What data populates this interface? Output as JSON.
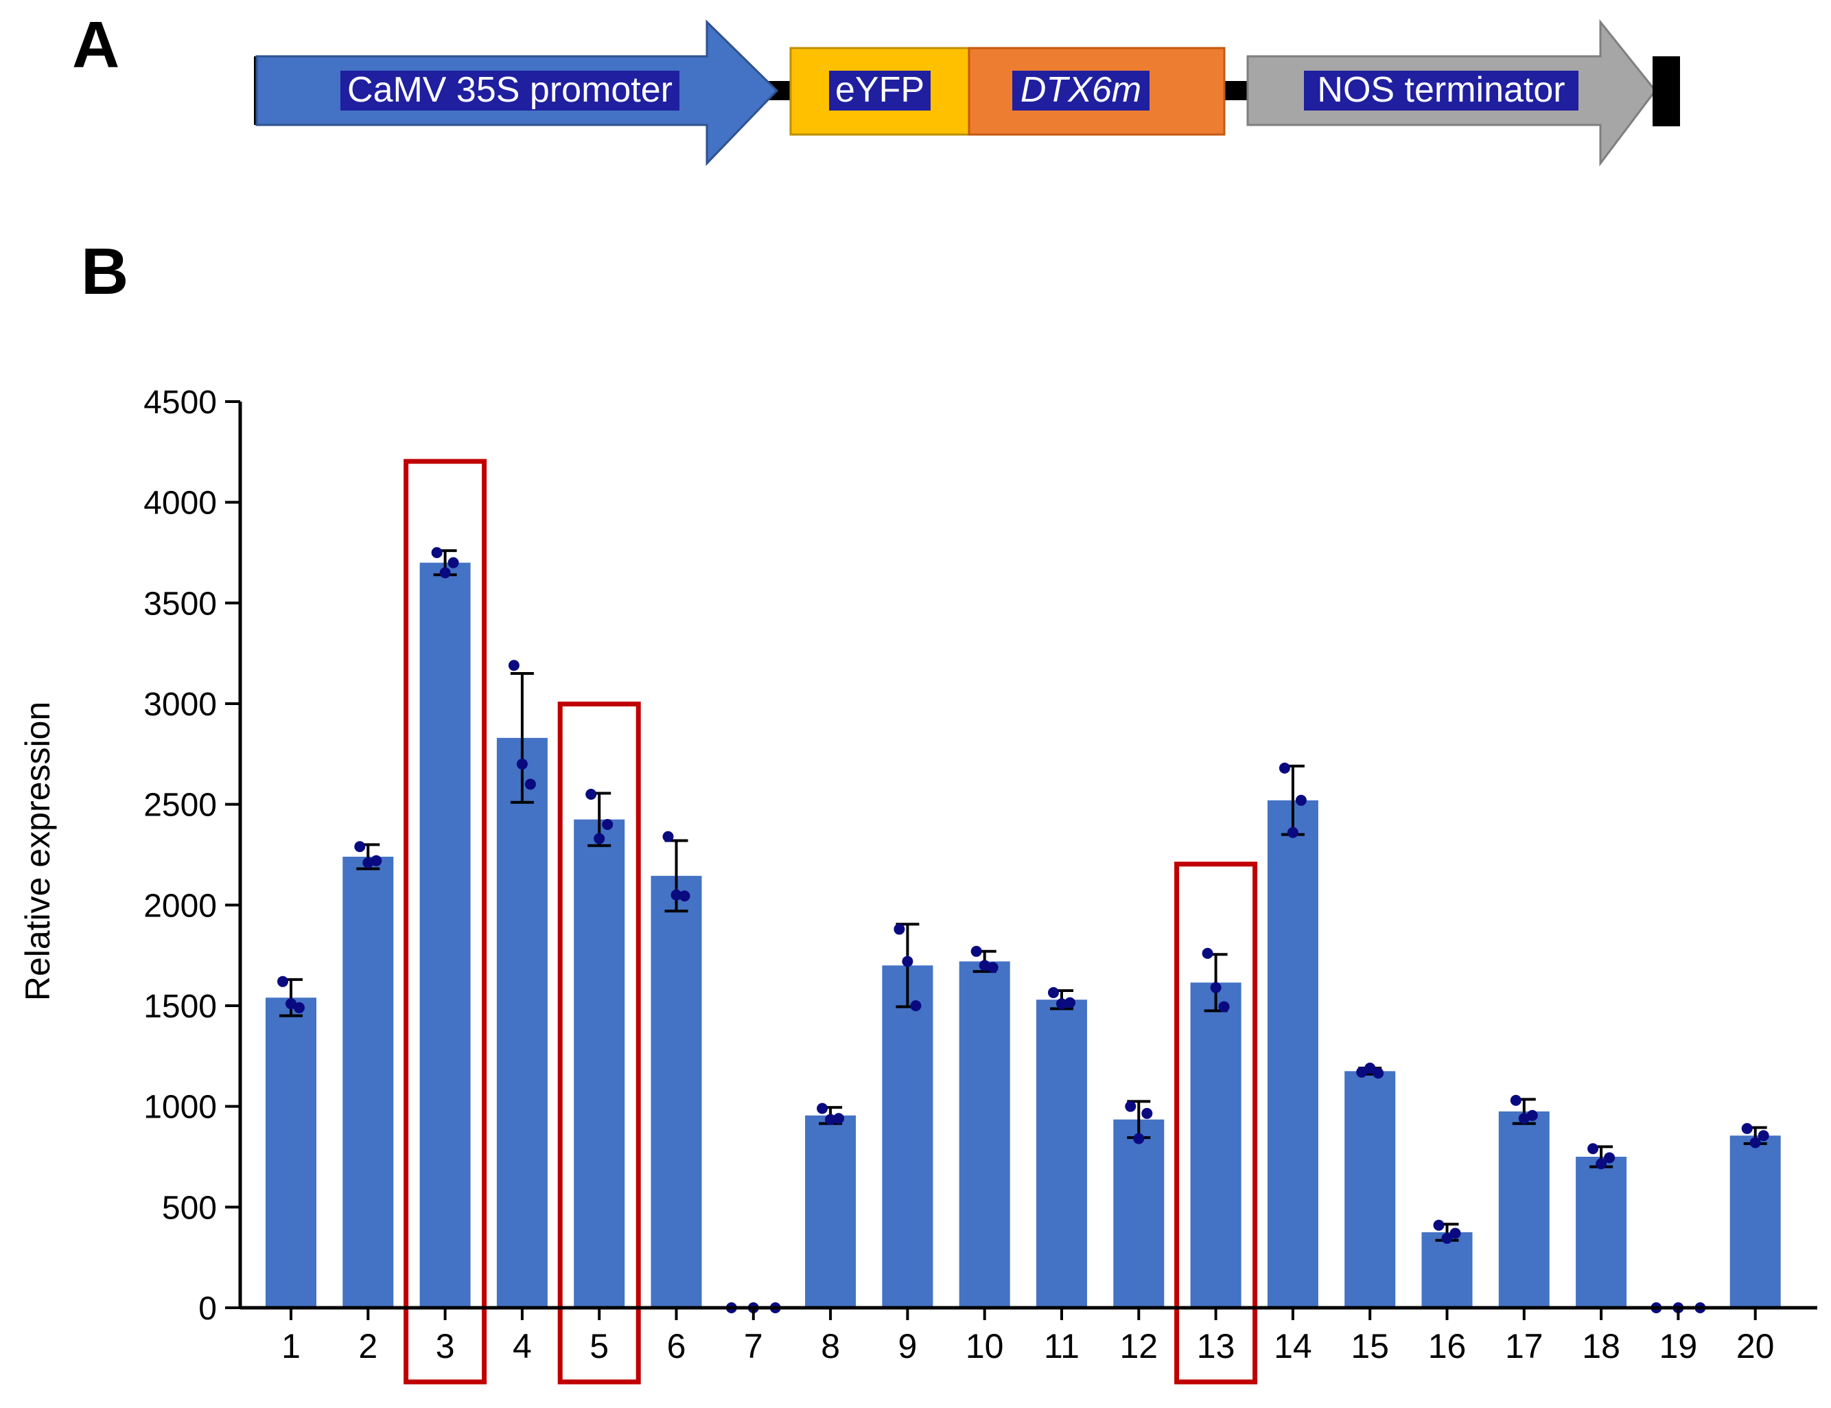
{
  "panels": [
    {
      "label": "A"
    },
    {
      "label": "B"
    }
  ],
  "construct": {
    "segments": [
      {
        "id": "promoter",
        "label": "CaMV 35S promoter",
        "italic": false,
        "color": "#4472C4"
      },
      {
        "id": "eyfp",
        "label": "eYFP",
        "italic": false,
        "color": "#FFC000"
      },
      {
        "id": "dtx6m",
        "label": "DTX6m",
        "italic": true,
        "color": "#ED7D31"
      },
      {
        "id": "terminator",
        "label": "NOS terminator",
        "italic": false,
        "color": "#A6A6A6"
      }
    ],
    "label_highlight_color": "#1F1F9F"
  },
  "chart_data": {
    "type": "bar",
    "ylabel": "Relative expression",
    "xlabel": "",
    "ylim": [
      0,
      4500
    ],
    "yticks": [
      0,
      500,
      1000,
      1500,
      2000,
      2500,
      3000,
      3500,
      4000,
      4500
    ],
    "categories": [
      "1",
      "2",
      "3",
      "4",
      "5",
      "6",
      "7",
      "8",
      "9",
      "10",
      "11",
      "12",
      "13",
      "14",
      "15",
      "16",
      "17",
      "18",
      "19",
      "20"
    ],
    "values": [
      1540,
      2240,
      3700,
      2830,
      2425,
      2145,
      0,
      955,
      1700,
      1720,
      1530,
      935,
      1615,
      2520,
      1175,
      375,
      975,
      750,
      0,
      855
    ],
    "errors": [
      90,
      60,
      60,
      320,
      130,
      175,
      0,
      40,
      205,
      50,
      45,
      90,
      140,
      170,
      15,
      40,
      60,
      50,
      0,
      40
    ],
    "points": [
      [
        1620,
        1510,
        1490
      ],
      [
        2290,
        2210,
        2220
      ],
      [
        3750,
        3650,
        3700
      ],
      [
        3190,
        2700,
        2600
      ],
      [
        2550,
        2330,
        2400
      ],
      [
        2340,
        2050,
        2045
      ],
      [
        0,
        0,
        0
      ],
      [
        990,
        935,
        940
      ],
      [
        1880,
        1720,
        1500
      ],
      [
        1770,
        1700,
        1690
      ],
      [
        1565,
        1510,
        1515
      ],
      [
        1000,
        840,
        965
      ],
      [
        1760,
        1590,
        1495
      ],
      [
        2680,
        2360,
        2520
      ],
      [
        1170,
        1190,
        1165
      ],
      [
        410,
        345,
        370
      ],
      [
        1030,
        940,
        955
      ],
      [
        790,
        715,
        745
      ],
      [
        0,
        0,
        0
      ],
      [
        890,
        820,
        855
      ]
    ],
    "highlighted": [
      "3",
      "5",
      "13"
    ],
    "bar_color": "#4472C4",
    "point_color": "#0A0A80",
    "highlight_color": "#C00000",
    "grid": false,
    "legend": "none"
  }
}
